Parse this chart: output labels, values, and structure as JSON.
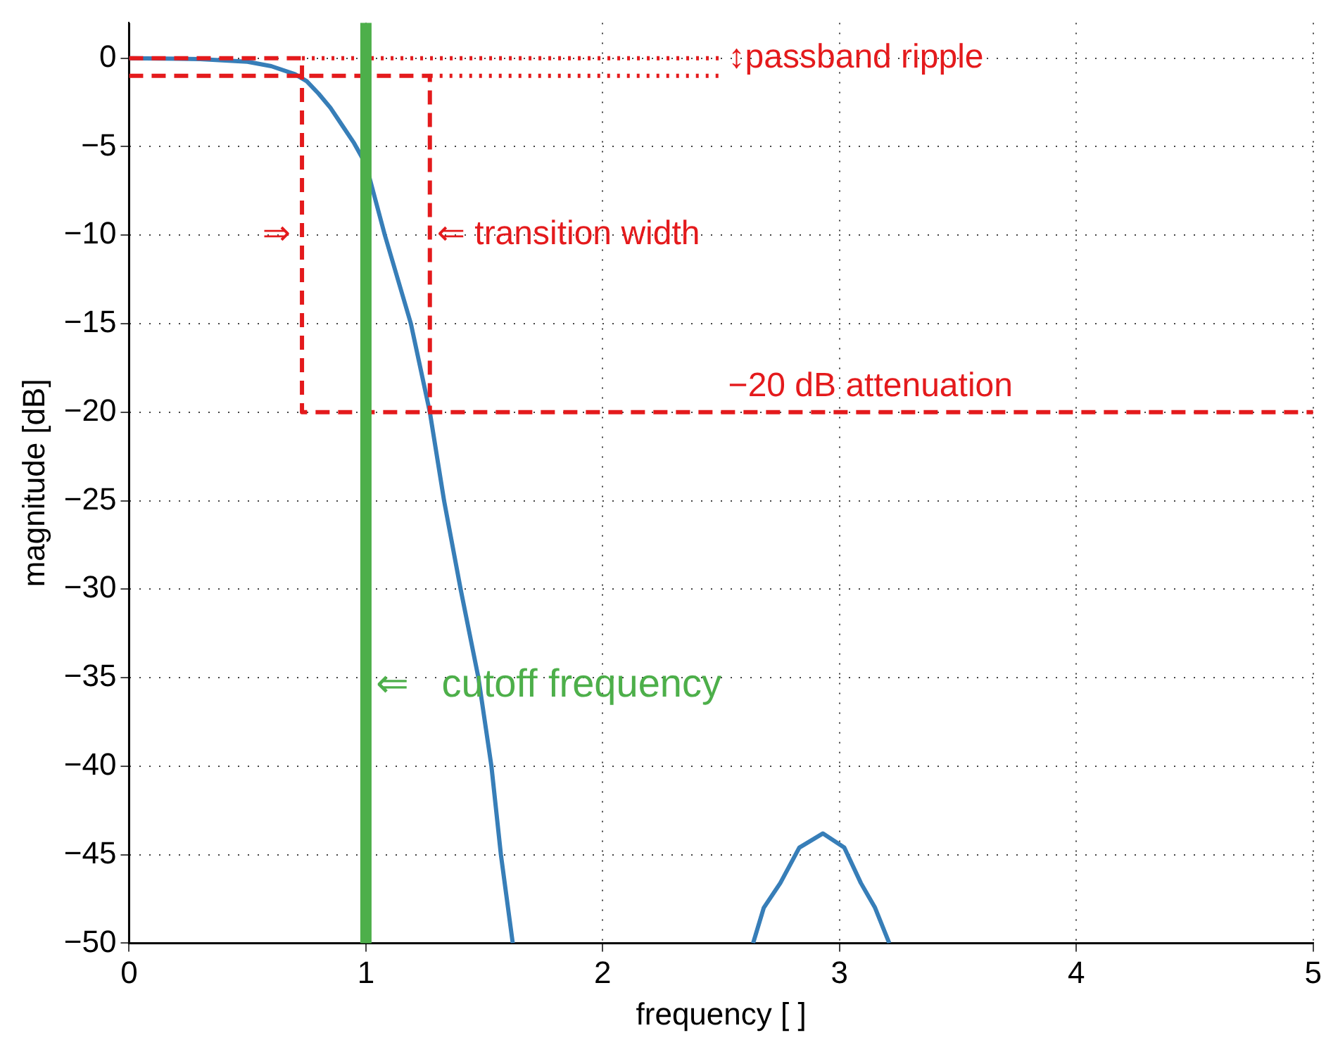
{
  "chart_data": {
    "type": "line",
    "xlabel": "frequency [ ]",
    "ylabel": "magnitude [dB]",
    "xlim": [
      0,
      5
    ],
    "xticks": [
      0,
      1,
      2,
      3,
      4,
      5
    ],
    "ylim": [
      -50,
      2
    ],
    "yticks": [
      {
        "value": -50,
        "label": "−50"
      },
      {
        "value": -45,
        "label": "−45"
      },
      {
        "value": -40,
        "label": "−40"
      },
      {
        "value": -35,
        "label": "−35"
      },
      {
        "value": -30,
        "label": "−30"
      },
      {
        "value": -25,
        "label": "−25"
      },
      {
        "value": -20,
        "label": "−20"
      },
      {
        "value": -15,
        "label": "−15"
      },
      {
        "value": -10,
        "label": "−10"
      },
      {
        "value": -5,
        "label": "−5"
      },
      0
    ],
    "grid": true,
    "legend": false,
    "marker": "none",
    "series": [
      {
        "color": "#e41a1c",
        "line_style": "dashed",
        "x": [
          0,
          0.73,
          0.73,
          5
        ],
        "values": [
          0,
          0,
          -20,
          -20
        ]
      },
      {
        "color": "#e41a1c",
        "line_style": "dashed",
        "x": [
          0,
          1.27,
          1.27
        ],
        "values": [
          -1,
          -1,
          -20
        ]
      },
      {
        "color": "#e41a1c",
        "line_style": "dotted",
        "x": [
          0.73,
          2.5
        ],
        "values": [
          0,
          0
        ]
      },
      {
        "color": "#e41a1c",
        "line_style": "dotted",
        "x": [
          1.27,
          2.5
        ],
        "values": [
          -1,
          -1
        ]
      },
      {
        "color": "#377eb8",
        "line_style": "solid",
        "x": [
          0,
          0.3,
          0.5,
          0.6,
          0.7,
          0.75,
          0.8,
          0.85,
          0.9,
          0.95,
          1.0,
          1.08,
          1.19,
          1.27,
          1.33,
          1.4,
          1.475,
          1.53,
          1.57,
          1.62,
          2.0,
          2.635,
          2.68,
          2.75,
          2.83,
          2.93,
          3.02,
          3.09,
          3.15,
          3.21
        ],
        "values": [
          0,
          -0.05,
          -0.2,
          -0.45,
          -0.9,
          -1.3,
          -2,
          -2.8,
          -3.8,
          -4.8,
          -6,
          -10,
          -15,
          -20,
          -25,
          -30,
          -35,
          -40,
          -45,
          -50,
          null,
          -50,
          -48,
          -46.6,
          -44.6,
          -43.8,
          -44.6,
          -46.6,
          -48,
          -50
        ]
      }
    ],
    "ref_lines": [
      {
        "axis": "x",
        "value": 1,
        "label": "⇐   cutoff frequency",
        "color": "#4daf4a"
      }
    ],
    "annotations": [
      {
        "text": "↕passband ripple",
        "x": 2.5,
        "y": 0
      },
      {
        "text": "⇒",
        "x": 0.73,
        "y": -10
      },
      {
        "text": "⇐ transition width",
        "x": 1.27,
        "y": -10
      },
      {
        "text": "−20 dB attenuation",
        "x": 2.5,
        "y": -20
      }
    ]
  }
}
